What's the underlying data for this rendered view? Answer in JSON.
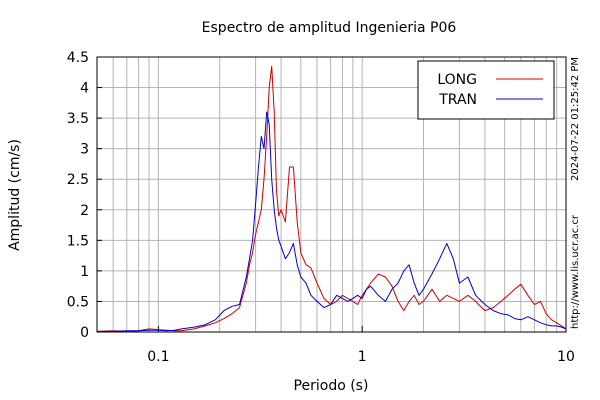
{
  "chart_data": {
    "type": "line",
    "title": "Espectro de amplitud Ingenieria P06",
    "xlabel": "Periodo (s)",
    "ylabel": "Amplitud (cm/s)",
    "x_scale": "log",
    "xlim": [
      0.05,
      10
    ],
    "ylim": [
      0,
      4.5
    ],
    "grid": true,
    "legend_position": "top-right",
    "timestamp": "2024-07-22 01:25:42 PM",
    "source": "http://www.lis.ucr.ac.cr",
    "x_ticks": [
      {
        "value": 0.1,
        "label": "0.1"
      },
      {
        "value": 1,
        "label": "1"
      },
      {
        "value": 10,
        "label": "10"
      }
    ],
    "y_ticks": [
      {
        "value": 0,
        "label": "0"
      },
      {
        "value": 0.5,
        "label": "0.5"
      },
      {
        "value": 1,
        "label": "1"
      },
      {
        "value": 1.5,
        "label": "1.5"
      },
      {
        "value": 2,
        "label": "2"
      },
      {
        "value": 2.5,
        "label": "2.5"
      },
      {
        "value": 3,
        "label": "3"
      },
      {
        "value": 3.5,
        "label": "3.5"
      },
      {
        "value": 4,
        "label": "4"
      },
      {
        "value": 4.5,
        "label": "4.5"
      }
    ],
    "series": [
      {
        "name": "LONG",
        "color": "#cc0000",
        "x": [
          0.05,
          0.06,
          0.07,
          0.08,
          0.09,
          0.1,
          0.11,
          0.12,
          0.13,
          0.15,
          0.17,
          0.19,
          0.21,
          0.23,
          0.25,
          0.27,
          0.28,
          0.29,
          0.3,
          0.31,
          0.32,
          0.33,
          0.34,
          0.35,
          0.36,
          0.37,
          0.38,
          0.39,
          0.4,
          0.42,
          0.44,
          0.46,
          0.48,
          0.5,
          0.53,
          0.56,
          0.6,
          0.65,
          0.7,
          0.75,
          0.8,
          0.85,
          0.9,
          0.95,
          1.0,
          1.05,
          1.1,
          1.2,
          1.3,
          1.4,
          1.5,
          1.6,
          1.7,
          1.8,
          1.9,
          2.0,
          2.2,
          2.4,
          2.6,
          2.8,
          3.0,
          3.3,
          3.6,
          4.0,
          4.4,
          4.8,
          5.2,
          5.6,
          6.0,
          6.5,
          7.0,
          7.5,
          8.0,
          8.5,
          9.0,
          9.5,
          10.0
        ],
        "y": [
          0.01,
          0.02,
          0.01,
          0.02,
          0.05,
          0.04,
          0.03,
          0.02,
          0.02,
          0.05,
          0.1,
          0.15,
          0.22,
          0.3,
          0.4,
          0.8,
          1.1,
          1.3,
          1.6,
          1.8,
          2.0,
          2.5,
          3.2,
          4.0,
          4.35,
          3.6,
          2.3,
          1.9,
          2.0,
          1.8,
          2.7,
          2.7,
          1.8,
          1.3,
          1.1,
          1.05,
          0.8,
          0.55,
          0.45,
          0.5,
          0.6,
          0.55,
          0.5,
          0.45,
          0.6,
          0.7,
          0.8,
          0.95,
          0.9,
          0.75,
          0.5,
          0.35,
          0.5,
          0.6,
          0.45,
          0.5,
          0.7,
          0.5,
          0.6,
          0.55,
          0.5,
          0.6,
          0.5,
          0.35,
          0.4,
          0.5,
          0.6,
          0.7,
          0.78,
          0.6,
          0.45,
          0.5,
          0.3,
          0.2,
          0.15,
          0.1,
          0.05
        ]
      },
      {
        "name": "TRAN",
        "color": "#0000cc",
        "x": [
          0.05,
          0.06,
          0.07,
          0.08,
          0.09,
          0.1,
          0.11,
          0.12,
          0.13,
          0.15,
          0.17,
          0.19,
          0.21,
          0.23,
          0.25,
          0.27,
          0.28,
          0.29,
          0.3,
          0.31,
          0.32,
          0.33,
          0.34,
          0.35,
          0.36,
          0.37,
          0.38,
          0.39,
          0.4,
          0.42,
          0.44,
          0.46,
          0.48,
          0.5,
          0.53,
          0.56,
          0.6,
          0.65,
          0.7,
          0.75,
          0.8,
          0.85,
          0.9,
          0.95,
          1.0,
          1.05,
          1.1,
          1.2,
          1.3,
          1.4,
          1.5,
          1.6,
          1.7,
          1.8,
          1.9,
          2.0,
          2.2,
          2.4,
          2.6,
          2.8,
          3.0,
          3.3,
          3.6,
          4.0,
          4.4,
          4.8,
          5.2,
          5.6,
          6.0,
          6.5,
          7.0,
          7.5,
          8.0,
          8.5,
          9.0,
          9.5,
          10.0
        ],
        "y": [
          0.01,
          0.01,
          0.02,
          0.02,
          0.03,
          0.03,
          0.02,
          0.03,
          0.05,
          0.08,
          0.12,
          0.2,
          0.35,
          0.42,
          0.45,
          0.9,
          1.2,
          1.5,
          2.1,
          2.7,
          3.2,
          3.0,
          3.6,
          3.4,
          2.5,
          2.0,
          1.7,
          1.5,
          1.4,
          1.2,
          1.3,
          1.45,
          1.1,
          0.9,
          0.8,
          0.6,
          0.5,
          0.4,
          0.45,
          0.6,
          0.55,
          0.5,
          0.55,
          0.6,
          0.55,
          0.7,
          0.75,
          0.6,
          0.5,
          0.7,
          0.8,
          1.0,
          1.1,
          0.8,
          0.6,
          0.7,
          0.95,
          1.2,
          1.45,
          1.2,
          0.8,
          0.9,
          0.6,
          0.45,
          0.35,
          0.3,
          0.28,
          0.22,
          0.2,
          0.25,
          0.2,
          0.15,
          0.12,
          0.1,
          0.1,
          0.08,
          0.05
        ]
      }
    ]
  }
}
